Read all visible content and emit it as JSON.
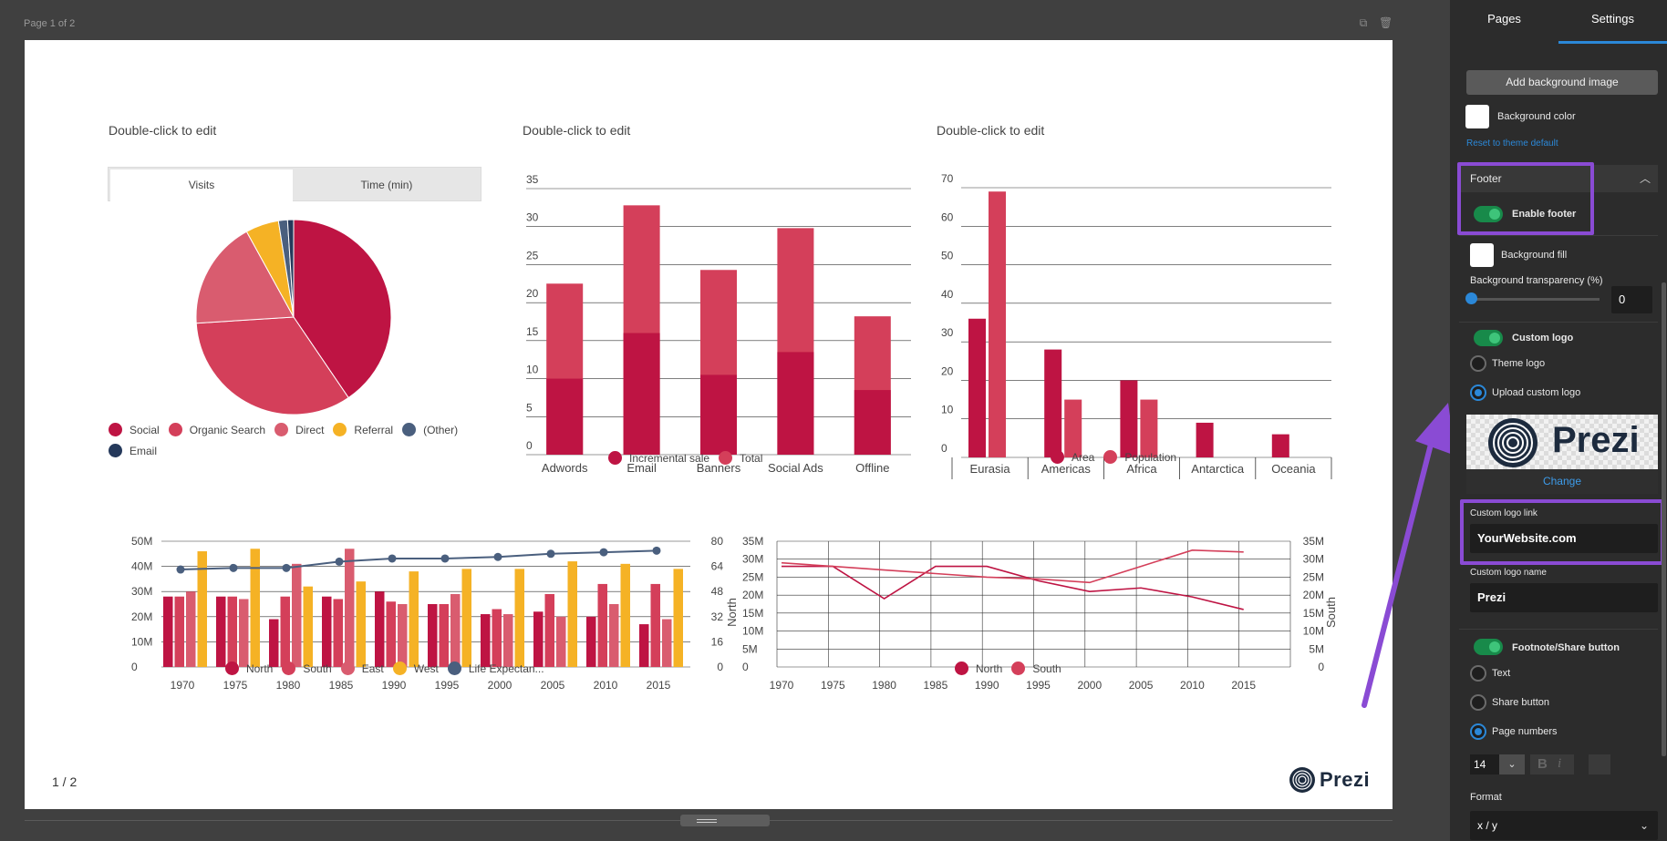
{
  "editor": {
    "page_label": "Page 1 of 2",
    "copy_icon": "copy-icon",
    "delete_icon": "trash-icon"
  },
  "slide": {
    "chart1": {
      "title": "Double-click to edit",
      "tabs": [
        "Visits",
        "Time (min)"
      ],
      "legend": [
        "Social",
        "Organic Search",
        "Direct",
        "Referral",
        "(Other)",
        "Email"
      ]
    },
    "chart2": {
      "title": "Double-click to edit",
      "legend": [
        "Incremental sale",
        "Total"
      ]
    },
    "chart3": {
      "title": "Double-click to edit",
      "legend": [
        "Area",
        "Population"
      ]
    },
    "chart4": {
      "legend": [
        "North",
        "South",
        "East",
        "West",
        "Life Expectan..."
      ]
    },
    "chart5": {
      "legend": [
        "North",
        "South"
      ],
      "ylabel_left": "North",
      "ylabel_right": "South"
    },
    "footer": {
      "page_number": "1 / 2",
      "logo_text": "Prezi"
    }
  },
  "chart_data": [
    {
      "type": "pie",
      "categories": [
        "Social",
        "Organic Search",
        "Direct",
        "Referral",
        "(Other)",
        "Email"
      ],
      "values": [
        40.5,
        33.5,
        18,
        5.5,
        1.5,
        1
      ],
      "colors": [
        "#be1443",
        "#d43f5a",
        "#d95c6f",
        "#f5b225",
        "#4a5f7e",
        "#25395b"
      ]
    },
    {
      "type": "bar",
      "stacked": true,
      "categories": [
        "Adwords",
        "Email",
        "Banners",
        "Social Ads",
        "Offline"
      ],
      "series": [
        {
          "name": "Incremental sale",
          "values": [
            10,
            16,
            10.5,
            13.5,
            8.5
          ]
        },
        {
          "name": "Total",
          "values": [
            22.5,
            32.8,
            24.3,
            29.8,
            18.2
          ]
        }
      ],
      "yticks": [
        "0",
        "5",
        "10",
        "15",
        "20",
        "25",
        "30",
        "35"
      ],
      "ylim": [
        0,
        35
      ]
    },
    {
      "type": "bar",
      "categories": [
        "Eurasia",
        "Americas",
        "Africa",
        "Antarctica",
        "Oceania"
      ],
      "series": [
        {
          "name": "Area",
          "values": [
            36,
            28,
            20,
            9,
            6
          ]
        },
        {
          "name": "Population",
          "values": [
            69,
            15,
            15,
            0,
            0
          ]
        }
      ],
      "yticks": [
        "0",
        "10",
        "20",
        "30",
        "40",
        "50",
        "60",
        "70"
      ],
      "ylim": [
        0,
        70
      ]
    },
    {
      "type": "bar",
      "x": [
        "1970",
        "1975",
        "1980",
        "1985",
        "1990",
        "1995",
        "2000",
        "2005",
        "2010",
        "2015"
      ],
      "series": [
        {
          "name": "North",
          "values": [
            28,
            28,
            19,
            28,
            30,
            25,
            21,
            22,
            20,
            17
          ]
        },
        {
          "name": "South",
          "values": [
            28,
            28,
            28,
            27,
            26,
            25,
            23,
            29,
            33,
            33
          ]
        },
        {
          "name": "East",
          "values": [
            30,
            27,
            41,
            47,
            25,
            29,
            21,
            20,
            25,
            19
          ]
        },
        {
          "name": "West",
          "values": [
            46,
            47,
            32,
            34,
            38,
            39,
            39,
            42,
            41,
            39
          ]
        },
        {
          "name": "Life Expectan...",
          "values": [
            62,
            63,
            63,
            67,
            69,
            69,
            70,
            72,
            73,
            74
          ],
          "axis": "right"
        }
      ],
      "yticks_left": [
        "0",
        "10M",
        "20M",
        "30M",
        "40M",
        "50M"
      ],
      "yticks_right": [
        "0",
        "16",
        "32",
        "48",
        "64",
        "80"
      ],
      "ylim": [
        0,
        50
      ],
      "ylim_right": [
        0,
        80
      ]
    },
    {
      "type": "line",
      "x": [
        "1970",
        "1975",
        "1980",
        "1985",
        "1990",
        "1995",
        "2000",
        "2005",
        "2010",
        "2015"
      ],
      "series": [
        {
          "name": "North",
          "values": [
            28,
            28,
            19,
            28,
            28,
            24,
            21,
            22,
            19.5,
            16
          ]
        },
        {
          "name": "South",
          "values": [
            29,
            28,
            27,
            26,
            25,
            24.5,
            23.5,
            28,
            32.5,
            32
          ]
        }
      ],
      "yticks_left": [
        "0",
        "5M",
        "10M",
        "15M",
        "20M",
        "25M",
        "30M",
        "35M"
      ],
      "yticks_right": [
        "0",
        "5M",
        "10M",
        "15M",
        "20M",
        "25M",
        "30M",
        "35M"
      ],
      "ylim": [
        0,
        35
      ]
    }
  ],
  "sidebar": {
    "tabs": [
      "Pages",
      "Settings"
    ],
    "add_bg_image": "Add background image",
    "bg_color": "Background color",
    "reset": "Reset to theme default",
    "footer_header": "Footer",
    "enable_footer": "Enable footer",
    "bg_fill": "Background fill",
    "bg_transparency": "Background transparency (%)",
    "bg_transparency_value": "0",
    "custom_logo": "Custom logo",
    "theme_logo": "Theme logo",
    "upload_custom_logo": "Upload custom logo",
    "logo_preview_text": "Prezi",
    "change": "Change",
    "custom_logo_link_label": "Custom logo link",
    "custom_logo_link_value": "YourWebsite.com",
    "custom_logo_name_label": "Custom logo name",
    "custom_logo_name_value": "Prezi",
    "footnote_share": "Footnote/Share button",
    "text_option": "Text",
    "share_button": "Share button",
    "page_numbers": "Page numbers",
    "font_size": "14",
    "format_label": "Format",
    "format_value": "x / y"
  },
  "colors": {
    "accent": "#2b88d8",
    "annotation": "#8a4bd4",
    "toggle": "#3ec47a"
  }
}
